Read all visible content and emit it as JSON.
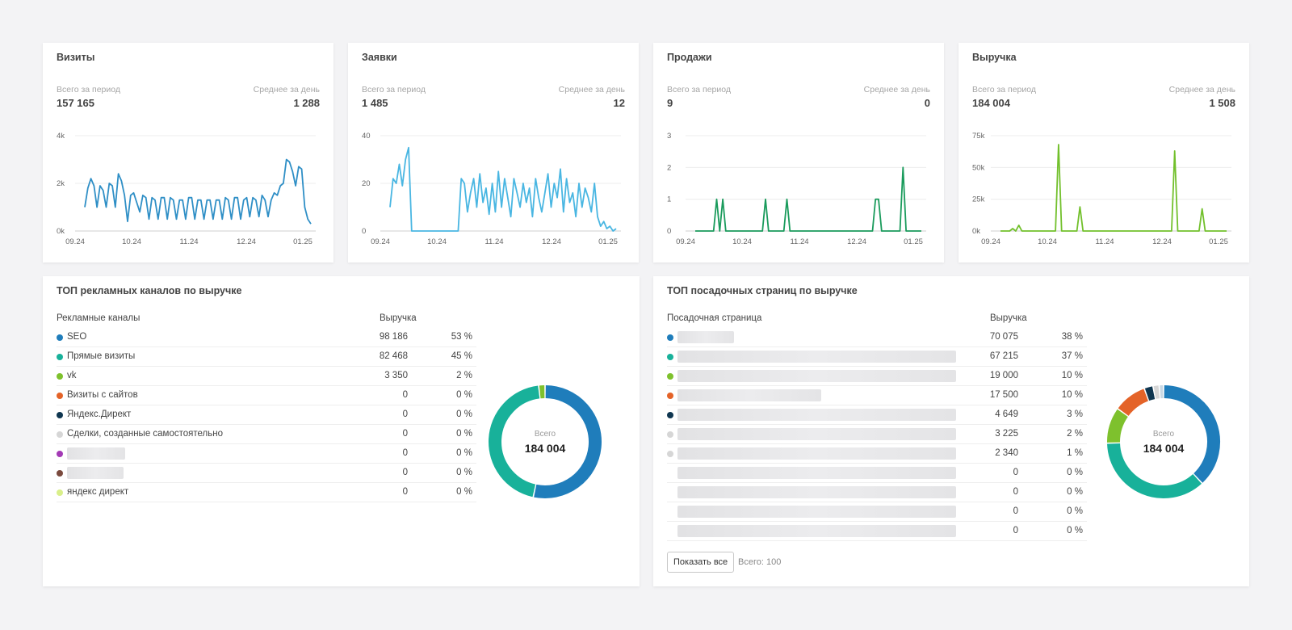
{
  "stats": [
    {
      "title": "Визиты",
      "total_label": "Всего за период",
      "total": "157 165",
      "avg_label": "Среднее за день",
      "avg": "1 288",
      "color": "#2f8fc6",
      "y_ticks": [
        "0k",
        "2k",
        "4k"
      ],
      "y_max": 4000,
      "x_ticks": [
        "09.24",
        "10.24",
        "11.24",
        "12.24",
        "01.25"
      ],
      "values": [
        1000,
        1800,
        2200,
        1900,
        1000,
        1900,
        1700,
        1000,
        2000,
        1900,
        1000,
        2400,
        2100,
        1500,
        400,
        1500,
        1600,
        1200,
        800,
        1500,
        1400,
        500,
        1400,
        1300,
        500,
        1400,
        1400,
        500,
        1400,
        1300,
        500,
        1300,
        1300,
        500,
        1400,
        1400,
        500,
        1300,
        1300,
        500,
        1300,
        1300,
        500,
        1300,
        1300,
        500,
        1400,
        1300,
        500,
        1400,
        1400,
        500,
        1300,
        1400,
        600,
        1400,
        1300,
        600,
        1500,
        1300,
        600,
        1300,
        1600,
        1500,
        1900,
        2000,
        3000,
        2900,
        2500,
        1900,
        2700,
        2600,
        1000,
        500,
        300
      ]
    },
    {
      "title": "Заявки",
      "total_label": "Всего за период",
      "total": "1 485",
      "avg_label": "Среднее за день",
      "avg": "12",
      "color": "#49b6e2",
      "y_ticks": [
        "0",
        "20",
        "40"
      ],
      "y_max": 40,
      "x_ticks": [
        "09.24",
        "10.24",
        "11.24",
        "12.24",
        "01.25"
      ],
      "values": [
        10,
        22,
        20,
        28,
        19,
        30,
        35,
        0,
        0,
        0,
        0,
        0,
        0,
        0,
        0,
        0,
        0,
        0,
        0,
        0,
        0,
        0,
        0,
        22,
        20,
        8,
        16,
        22,
        10,
        24,
        12,
        18,
        7,
        20,
        8,
        25,
        10,
        22,
        14,
        6,
        22,
        16,
        10,
        20,
        12,
        18,
        6,
        22,
        14,
        8,
        16,
        24,
        10,
        20,
        14,
        26,
        8,
        22,
        12,
        16,
        6,
        20,
        10,
        18,
        14,
        8,
        20,
        6,
        2,
        4,
        1,
        2,
        0,
        1
      ]
    },
    {
      "title": "Продажи",
      "total_label": "Всего за период",
      "total": "9",
      "avg_label": "Среднее за день",
      "avg": "0",
      "color": "#1a9b5c",
      "y_ticks": [
        "0",
        "1",
        "2",
        "3"
      ],
      "y_max": 3,
      "x_ticks": [
        "09.24",
        "10.24",
        "11.24",
        "12.24",
        "01.25"
      ],
      "values": [
        0,
        0,
        0,
        0,
        0,
        0,
        0,
        1,
        0,
        1,
        0,
        0,
        0,
        0,
        0,
        0,
        0,
        0,
        0,
        0,
        0,
        0,
        0,
        1,
        0,
        0,
        0,
        0,
        0,
        0,
        1,
        0,
        0,
        0,
        0,
        0,
        0,
        0,
        0,
        0,
        0,
        0,
        0,
        0,
        0,
        0,
        0,
        0,
        0,
        0,
        0,
        0,
        0,
        0,
        0,
        0,
        0,
        0,
        0,
        1,
        1,
        0,
        0,
        0,
        0,
        0,
        0,
        0,
        2,
        0,
        0,
        0,
        0,
        0,
        0
      ]
    },
    {
      "title": "Выручка",
      "total_label": "Всего за период",
      "total": "184 004",
      "avg_label": "Среднее за день",
      "avg": "1 508",
      "color": "#72c02c",
      "y_ticks": [
        "0k",
        "25k",
        "50k",
        "75k"
      ],
      "y_max": 75000,
      "x_ticks": [
        "09.24",
        "10.24",
        "11.24",
        "12.24",
        "01.25"
      ],
      "values": [
        0,
        0,
        0,
        0,
        2000,
        0,
        4500,
        0,
        0,
        0,
        0,
        0,
        0,
        0,
        0,
        0,
        0,
        0,
        0,
        68000,
        0,
        0,
        0,
        0,
        0,
        0,
        19000,
        0,
        0,
        0,
        0,
        0,
        0,
        0,
        0,
        0,
        0,
        0,
        0,
        0,
        0,
        0,
        0,
        0,
        0,
        0,
        0,
        0,
        0,
        0,
        0,
        0,
        0,
        0,
        0,
        0,
        0,
        63000,
        0,
        0,
        0,
        0,
        0,
        0,
        0,
        0,
        17500,
        0,
        0,
        0,
        0,
        0,
        0,
        0,
        0
      ]
    }
  ],
  "channels": {
    "title": "ТОП рекламных каналов по выручке",
    "col_name": "Рекламные каналы",
    "col_value": "Выручка",
    "rows": [
      {
        "name": "SEO",
        "value": "98 186",
        "pct": "53 %",
        "color": "#1f7dbb"
      },
      {
        "name": "Прямые визиты",
        "value": "82 468",
        "pct": "45 %",
        "color": "#18b19a"
      },
      {
        "name": "vk",
        "value": "3 350",
        "pct": "2 %",
        "color": "#7ec12d"
      },
      {
        "name": "Визиты с сайтов",
        "value": "0",
        "pct": "0 %",
        "color": "#e46328"
      },
      {
        "name": "Яндекс.Директ",
        "value": "0",
        "pct": "0 %",
        "color": "#0f3650"
      },
      {
        "name": "Сделки, созданные самостоятельно",
        "value": "0",
        "pct": "0 %",
        "color": "#d6d6d6"
      },
      {
        "name": "",
        "value": "0",
        "pct": "0 %",
        "color": "#a33ab5"
      },
      {
        "name": "",
        "value": "0",
        "pct": "0 %",
        "color": "#7a4a3e"
      },
      {
        "name": "яндекс директ",
        "value": "0",
        "pct": "0 %",
        "color": "#d9ef8a"
      }
    ],
    "donut_label": "Всего",
    "donut_total": "184 004"
  },
  "landing": {
    "title": "ТОП посадочных страниц по выручке",
    "col_name": "Посадочная страница",
    "col_value": "Выручка",
    "rows": [
      {
        "value": "70 075",
        "pct": "38 %",
        "color": "#1f7dbb"
      },
      {
        "value": "67 215",
        "pct": "37 %",
        "color": "#18b19a"
      },
      {
        "value": "19 000",
        "pct": "10 %",
        "color": "#7ec12d"
      },
      {
        "value": "17 500",
        "pct": "10 %",
        "color": "#e46328"
      },
      {
        "value": "4 649",
        "pct": "3 %",
        "color": "#0f3650"
      },
      {
        "value": "3 225",
        "pct": "2 %",
        "color": "#d6d6d6"
      },
      {
        "value": "2 340",
        "pct": "1 %",
        "color": "#d6d6d6"
      },
      {
        "value": "0",
        "pct": "0 %",
        "color": ""
      },
      {
        "value": "0",
        "pct": "0 %",
        "color": ""
      },
      {
        "value": "0",
        "pct": "0 %",
        "color": ""
      },
      {
        "value": "0",
        "pct": "0 %",
        "color": ""
      }
    ],
    "donut_label": "Всего",
    "donut_total": "184 004",
    "show_all": "Показать все",
    "total_text": "Всего: 100"
  },
  "chart_data": [
    {
      "type": "line",
      "title": "Визиты",
      "x_ticks": [
        "09.24",
        "10.24",
        "11.24",
        "12.24",
        "01.25"
      ],
      "ylim": [
        0,
        4000
      ]
    },
    {
      "type": "line",
      "title": "Заявки",
      "x_ticks": [
        "09.24",
        "10.24",
        "11.24",
        "12.24",
        "01.25"
      ],
      "ylim": [
        0,
        40
      ]
    },
    {
      "type": "line",
      "title": "Продажи",
      "x_ticks": [
        "09.24",
        "10.24",
        "11.24",
        "12.24",
        "01.25"
      ],
      "ylim": [
        0,
        3
      ]
    },
    {
      "type": "line",
      "title": "Выручка",
      "x_ticks": [
        "09.24",
        "10.24",
        "11.24",
        "12.24",
        "01.25"
      ],
      "ylim": [
        0,
        75000
      ]
    },
    {
      "type": "pie",
      "title": "ТОП рекламных каналов по выручке",
      "categories": [
        "SEO",
        "Прямые визиты",
        "vk"
      ],
      "values": [
        98186,
        82468,
        3350
      ]
    },
    {
      "type": "pie",
      "title": "ТОП посадочных страниц по выручке",
      "values": [
        70075,
        67215,
        19000,
        17500,
        4649,
        3225,
        2340
      ]
    }
  ]
}
